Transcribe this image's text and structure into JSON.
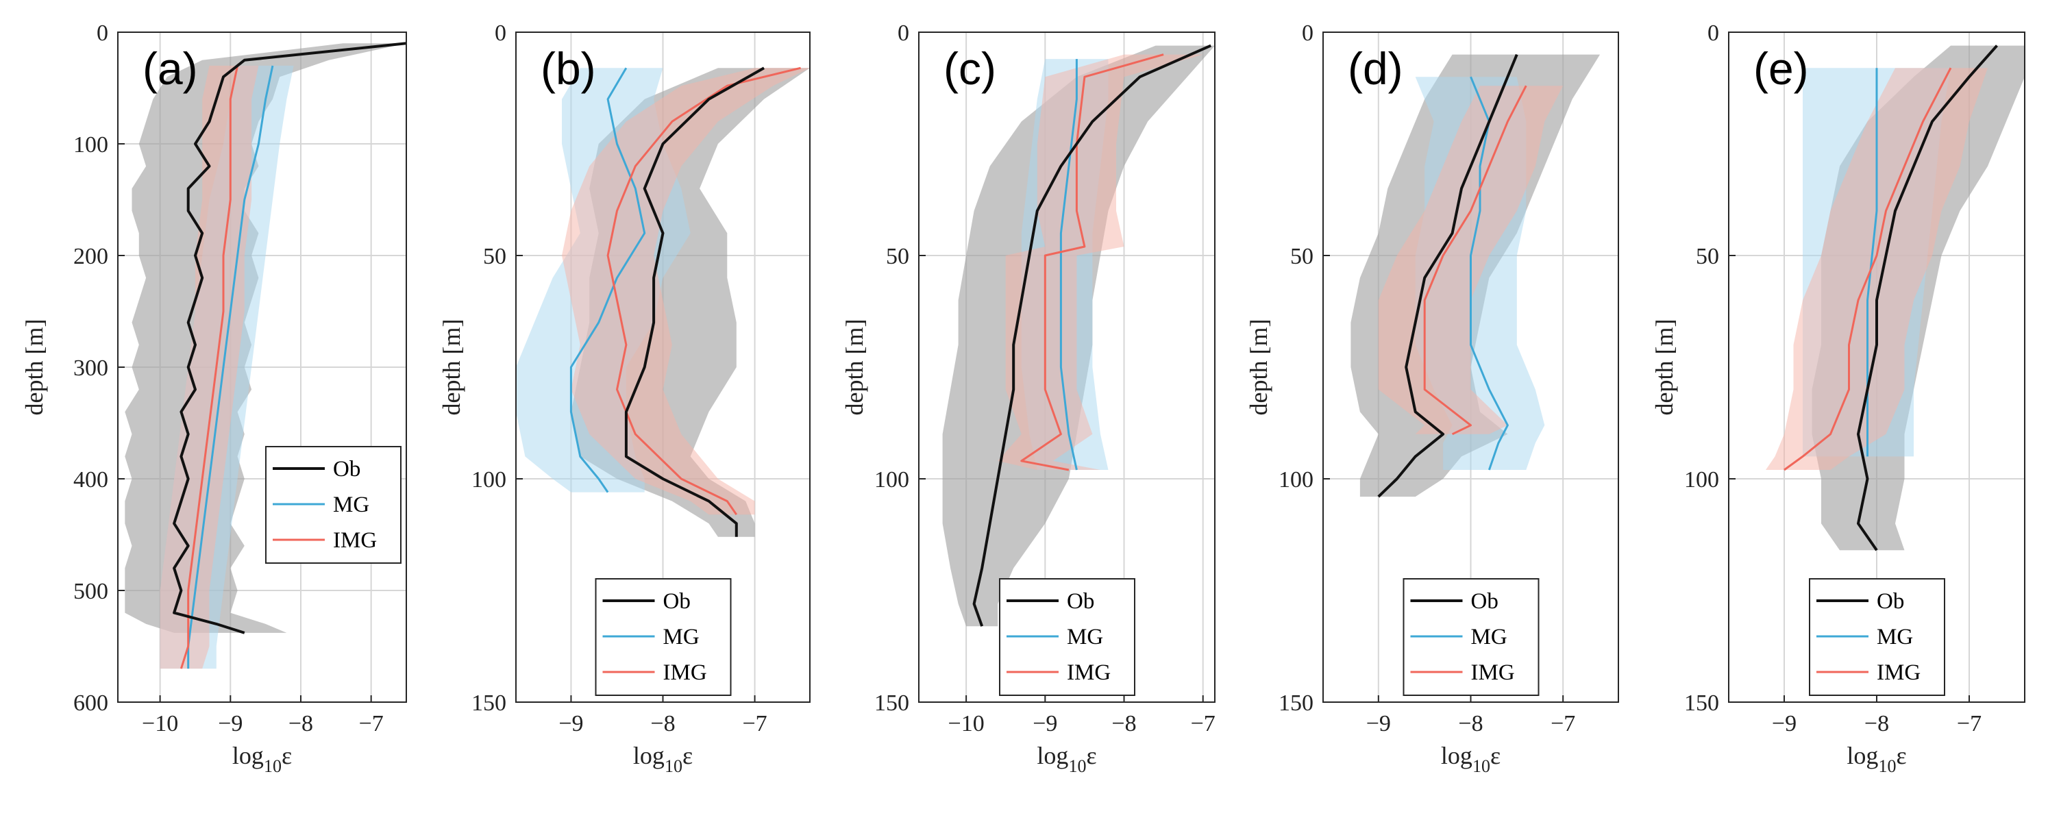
{
  "figure": {
    "ylabel": "depth [m]",
    "xlabel_base": "log",
    "xlabel_sub": "10",
    "xlabel_var": "ε",
    "legend": [
      "Ob",
      "MG",
      "IMG"
    ],
    "colors": {
      "Ob": "#111111",
      "MG": "#3ea8d6",
      "IMG": "#f0665a",
      "Ob_band": "#9e9e9e",
      "MG_band": "#a9d8ef",
      "IMG_band": "#f6b3a8",
      "grid": "#d6d6d6",
      "axis": "#262626"
    }
  },
  "chart_data": [
    {
      "type": "line",
      "label": "(a)",
      "xlim": [
        -10.6,
        -6.5
      ],
      "xticks": [
        -10,
        -9,
        -8,
        -7
      ],
      "xticklabels": [
        "−10",
        "−9",
        "−8",
        "−7"
      ],
      "ylim": [
        0,
        600
      ],
      "yticks": [
        0,
        100,
        200,
        300,
        400,
        500,
        600
      ],
      "yticklabels": [
        "0",
        "100",
        "200",
        "300",
        "400",
        "500",
        "600"
      ],
      "legend_position": "lower-right",
      "series": [
        {
          "name": "Ob",
          "depth": [
            10,
            25,
            40,
            60,
            80,
            100,
            120,
            140,
            160,
            180,
            200,
            220,
            240,
            260,
            280,
            300,
            320,
            340,
            360,
            380,
            400,
            420,
            440,
            460,
            480,
            500,
            520,
            530,
            538
          ],
          "values": [
            -6.5,
            -8.8,
            -9.1,
            -9.2,
            -9.3,
            -9.5,
            -9.3,
            -9.6,
            -9.6,
            -9.4,
            -9.5,
            -9.4,
            -9.5,
            -9.6,
            -9.5,
            -9.6,
            -9.5,
            -9.7,
            -9.6,
            -9.7,
            -9.6,
            -9.7,
            -9.8,
            -9.6,
            -9.8,
            -9.7,
            -9.8,
            -9.2,
            -8.8
          ],
          "lower": [
            -7.4,
            -9.4,
            -9.9,
            -10.1,
            -10.2,
            -10.3,
            -10.2,
            -10.4,
            -10.4,
            -10.3,
            -10.3,
            -10.2,
            -10.3,
            -10.4,
            -10.3,
            -10.4,
            -10.3,
            -10.5,
            -10.4,
            -10.5,
            -10.4,
            -10.5,
            -10.5,
            -10.4,
            -10.5,
            -10.5,
            -10.5,
            -10.2,
            -9.8
          ],
          "upper": [
            -6.5,
            -7.6,
            -8.3,
            -8.4,
            -8.6,
            -8.7,
            -8.6,
            -8.8,
            -8.8,
            -8.6,
            -8.7,
            -8.6,
            -8.7,
            -8.8,
            -8.7,
            -8.8,
            -8.7,
            -8.9,
            -8.8,
            -8.9,
            -8.8,
            -8.9,
            -9.0,
            -8.8,
            -9.0,
            -8.9,
            -9.0,
            -8.5,
            -8.2
          ]
        },
        {
          "name": "MG",
          "depth": [
            30,
            60,
            100,
            150,
            200,
            250,
            300,
            350,
            400,
            450,
            500,
            550,
            570
          ],
          "values": [
            -8.4,
            -8.5,
            -8.6,
            -8.8,
            -8.9,
            -9.0,
            -9.1,
            -9.2,
            -9.3,
            -9.4,
            -9.5,
            -9.6,
            -9.6
          ],
          "lower": [
            -8.9,
            -9.0,
            -9.1,
            -9.3,
            -9.4,
            -9.5,
            -9.6,
            -9.7,
            -9.8,
            -9.9,
            -10.0,
            -10.0,
            -10.0
          ],
          "upper": [
            -8.1,
            -8.2,
            -8.3,
            -8.4,
            -8.5,
            -8.6,
            -8.7,
            -8.8,
            -8.9,
            -9.0,
            -9.1,
            -9.2,
            -9.2
          ]
        },
        {
          "name": "IMG",
          "depth": [
            30,
            60,
            100,
            150,
            200,
            250,
            300,
            350,
            400,
            450,
            500,
            550,
            570
          ],
          "values": [
            -8.9,
            -9.0,
            -9.0,
            -9.0,
            -9.1,
            -9.1,
            -9.2,
            -9.3,
            -9.4,
            -9.5,
            -9.6,
            -9.6,
            -9.7
          ],
          "lower": [
            -9.3,
            -9.4,
            -9.4,
            -9.4,
            -9.5,
            -9.5,
            -9.6,
            -9.7,
            -9.8,
            -9.9,
            -10.0,
            -10.0,
            -10.0
          ],
          "upper": [
            -8.6,
            -8.7,
            -8.7,
            -8.7,
            -8.8,
            -8.8,
            -8.9,
            -9.0,
            -9.1,
            -9.2,
            -9.3,
            -9.3,
            -9.4
          ]
        }
      ]
    },
    {
      "type": "line",
      "label": "(b)",
      "xlim": [
        -9.6,
        -6.4
      ],
      "xticks": [
        -9,
        -8,
        -7
      ],
      "xticklabels": [
        "−9",
        "−8",
        "−7"
      ],
      "ylim": [
        0,
        150
      ],
      "yticks": [
        0,
        50,
        100,
        150
      ],
      "yticklabels": [
        "0",
        "50",
        "100",
        "150"
      ],
      "legend_position": "bottom",
      "series": [
        {
          "name": "Ob",
          "depth": [
            8,
            15,
            25,
            35,
            45,
            55,
            65,
            75,
            85,
            95,
            100,
            105,
            110,
            113
          ],
          "values": [
            -6.9,
            -7.5,
            -8.0,
            -8.2,
            -8.0,
            -8.1,
            -8.1,
            -8.2,
            -8.4,
            -8.4,
            -8.0,
            -7.5,
            -7.2,
            -7.2
          ],
          "lower": [
            -7.4,
            -8.2,
            -8.7,
            -8.8,
            -8.7,
            -8.8,
            -8.8,
            -8.9,
            -9.0,
            -8.9,
            -8.5,
            -7.9,
            -7.5,
            -7.4
          ],
          "upper": [
            -6.4,
            -6.9,
            -7.4,
            -7.6,
            -7.3,
            -7.3,
            -7.2,
            -7.2,
            -7.5,
            -7.7,
            -7.5,
            -7.1,
            -7.0,
            -7.0
          ]
        },
        {
          "name": "MG",
          "depth": [
            8,
            15,
            25,
            35,
            45,
            55,
            65,
            75,
            85,
            95,
            100,
            103
          ],
          "values": [
            -8.4,
            -8.6,
            -8.5,
            -8.3,
            -8.2,
            -8.5,
            -8.7,
            -9.0,
            -9.0,
            -8.9,
            -8.7,
            -8.6
          ],
          "lower": [
            -8.9,
            -9.1,
            -9.1,
            -9.0,
            -8.9,
            -9.2,
            -9.4,
            -9.6,
            -9.6,
            -9.5,
            -9.2,
            -9.0
          ],
          "upper": [
            -8.0,
            -8.1,
            -8.0,
            -7.8,
            -7.7,
            -8.0,
            -8.1,
            -8.4,
            -8.4,
            -8.3,
            -8.2,
            -8.2
          ]
        },
        {
          "name": "IMG",
          "depth": [
            8,
            12,
            20,
            30,
            40,
            50,
            60,
            70,
            80,
            90,
            100,
            105,
            108
          ],
          "values": [
            -6.5,
            -7.3,
            -7.9,
            -8.3,
            -8.5,
            -8.6,
            -8.5,
            -8.4,
            -8.5,
            -8.3,
            -7.8,
            -7.3,
            -7.2
          ],
          "lower": [
            -7.0,
            -7.8,
            -8.4,
            -8.8,
            -9.0,
            -9.1,
            -9.0,
            -8.9,
            -9.0,
            -8.8,
            -8.3,
            -7.7,
            -7.5
          ],
          "upper": [
            -6.4,
            -6.8,
            -7.4,
            -7.8,
            -8.0,
            -8.1,
            -8.0,
            -7.9,
            -8.0,
            -7.8,
            -7.4,
            -7.0,
            -7.0
          ]
        }
      ]
    },
    {
      "type": "line",
      "label": "(c)",
      "xlim": [
        -10.6,
        -6.85
      ],
      "xticks": [
        -10,
        -9,
        -8,
        -7
      ],
      "xticklabels": [
        "−10",
        "−9",
        "−8",
        "−7"
      ],
      "ylim": [
        0,
        150
      ],
      "yticks": [
        0,
        50,
        100,
        150
      ],
      "yticklabels": [
        "0",
        "50",
        "100",
        "150"
      ],
      "legend_position": "bottom",
      "series": [
        {
          "name": "Ob",
          "depth": [
            3,
            10,
            20,
            30,
            40,
            50,
            60,
            70,
            80,
            90,
            100,
            110,
            120,
            128,
            133
          ],
          "values": [
            -6.9,
            -7.8,
            -8.4,
            -8.8,
            -9.1,
            -9.2,
            -9.3,
            -9.4,
            -9.4,
            -9.5,
            -9.6,
            -9.7,
            -9.8,
            -9.9,
            -9.8
          ],
          "lower": [
            -7.6,
            -8.6,
            -9.3,
            -9.7,
            -9.9,
            -10.0,
            -10.1,
            -10.1,
            -10.2,
            -10.3,
            -10.3,
            -10.3,
            -10.2,
            -10.1,
            -10.0
          ],
          "upper": [
            -6.85,
            -7.2,
            -7.7,
            -8.0,
            -8.2,
            -8.3,
            -8.4,
            -8.4,
            -8.5,
            -8.6,
            -8.7,
            -9.0,
            -9.4,
            -9.6,
            -9.6
          ]
        },
        {
          "name": "MG",
          "depth": [
            6,
            15,
            30,
            45,
            60,
            75,
            90,
            98
          ],
          "values": [
            -8.6,
            -8.6,
            -8.7,
            -8.8,
            -8.8,
            -8.8,
            -8.7,
            -8.6
          ],
          "lower": [
            -9.0,
            -9.1,
            -9.2,
            -9.3,
            -9.3,
            -9.3,
            -9.2,
            -9.1
          ],
          "upper": [
            -8.2,
            -8.2,
            -8.3,
            -8.4,
            -8.4,
            -8.4,
            -8.3,
            -8.2
          ]
        },
        {
          "name": "IMG",
          "depth": [
            5,
            10,
            25,
            40,
            48,
            50,
            60,
            70,
            80,
            90,
            96,
            98
          ],
          "values": [
            -7.5,
            -8.5,
            -8.6,
            -8.6,
            -8.5,
            -9.0,
            -9.0,
            -9.0,
            -9.0,
            -8.8,
            -9.3,
            -8.7
          ],
          "lower": [
            -8.0,
            -9.0,
            -9.1,
            -9.1,
            -9.0,
            -9.5,
            -9.5,
            -9.5,
            -9.5,
            -9.3,
            -9.6,
            -9.1
          ],
          "upper": [
            -7.0,
            -8.0,
            -8.1,
            -8.1,
            -8.0,
            -8.6,
            -8.6,
            -8.6,
            -8.6,
            -8.4,
            -8.9,
            -8.3
          ]
        }
      ]
    },
    {
      "type": "line",
      "label": "(d)",
      "xlim": [
        -9.6,
        -6.4
      ],
      "xticks": [
        -9,
        -8,
        -7
      ],
      "xticklabels": [
        "−9",
        "−8",
        "−7"
      ],
      "ylim": [
        0,
        150
      ],
      "yticks": [
        0,
        50,
        100,
        150
      ],
      "yticklabels": [
        "0",
        "50",
        "100",
        "150"
      ],
      "legend_position": "bottom",
      "series": [
        {
          "name": "Ob",
          "depth": [
            5,
            15,
            25,
            35,
            45,
            55,
            65,
            75,
            85,
            90,
            95,
            100,
            104
          ],
          "values": [
            -7.5,
            -7.7,
            -7.9,
            -8.1,
            -8.2,
            -8.5,
            -8.6,
            -8.7,
            -8.6,
            -8.3,
            -8.6,
            -8.8,
            -9.0
          ],
          "lower": [
            -8.2,
            -8.5,
            -8.7,
            -8.9,
            -9.0,
            -9.2,
            -9.3,
            -9.3,
            -9.2,
            -9.0,
            -9.1,
            -9.2,
            -9.2
          ],
          "upper": [
            -6.6,
            -6.9,
            -7.1,
            -7.3,
            -7.5,
            -7.8,
            -7.9,
            -8.0,
            -7.9,
            -7.6,
            -8.1,
            -8.3,
            -8.6
          ]
        },
        {
          "name": "MG",
          "depth": [
            10,
            20,
            30,
            40,
            50,
            60,
            70,
            80,
            88,
            92,
            98
          ],
          "values": [
            -8.0,
            -7.8,
            -7.9,
            -7.9,
            -8.0,
            -8.0,
            -8.0,
            -7.8,
            -7.6,
            -7.7,
            -7.8
          ],
          "lower": [
            -8.6,
            -8.4,
            -8.5,
            -8.5,
            -8.6,
            -8.6,
            -8.6,
            -8.4,
            -8.2,
            -8.3,
            -8.3
          ],
          "upper": [
            -7.5,
            -7.4,
            -7.4,
            -7.4,
            -7.5,
            -7.5,
            -7.5,
            -7.3,
            -7.2,
            -7.3,
            -7.4
          ]
        },
        {
          "name": "IMG",
          "depth": [
            12,
            20,
            30,
            40,
            50,
            60,
            70,
            80,
            88,
            90
          ],
          "values": [
            -7.4,
            -7.6,
            -7.8,
            -8.0,
            -8.3,
            -8.5,
            -8.5,
            -8.5,
            -8.0,
            -8.2
          ],
          "lower": [
            -7.9,
            -8.1,
            -8.3,
            -8.5,
            -8.8,
            -9.0,
            -9.0,
            -9.0,
            -8.5,
            -8.6
          ],
          "upper": [
            -7.0,
            -7.2,
            -7.3,
            -7.5,
            -7.8,
            -8.0,
            -8.0,
            -8.0,
            -7.6,
            -7.8
          ]
        }
      ]
    },
    {
      "type": "line",
      "label": "(e)",
      "xlim": [
        -9.6,
        -6.4
      ],
      "xticks": [
        -9,
        -8,
        -7
      ],
      "xticklabels": [
        "−9",
        "−8",
        "−7"
      ],
      "ylim": [
        0,
        150
      ],
      "yticks": [
        0,
        50,
        100,
        150
      ],
      "yticklabels": [
        "0",
        "50",
        "100",
        "150"
      ],
      "legend_position": "bottom",
      "series": [
        {
          "name": "Ob",
          "depth": [
            3,
            10,
            20,
            30,
            40,
            50,
            60,
            70,
            80,
            90,
            100,
            110,
            116
          ],
          "values": [
            -6.7,
            -7.0,
            -7.4,
            -7.6,
            -7.8,
            -7.9,
            -8.0,
            -8.0,
            -8.1,
            -8.2,
            -8.1,
            -8.2,
            -8.0
          ],
          "lower": [
            -7.2,
            -7.6,
            -8.1,
            -8.4,
            -8.5,
            -8.6,
            -8.6,
            -8.6,
            -8.7,
            -8.7,
            -8.6,
            -8.6,
            -8.4
          ],
          "upper": [
            -6.4,
            -6.4,
            -6.6,
            -6.8,
            -7.1,
            -7.3,
            -7.4,
            -7.5,
            -7.6,
            -7.7,
            -7.7,
            -7.8,
            -7.7
          ]
        },
        {
          "name": "MG",
          "depth": [
            8,
            20,
            40,
            60,
            80,
            95
          ],
          "values": [
            -8.0,
            -8.0,
            -8.0,
            -8.1,
            -8.1,
            -8.1
          ],
          "lower": [
            -8.8,
            -8.8,
            -8.8,
            -8.8,
            -8.8,
            -8.8
          ],
          "upper": [
            -7.2,
            -7.3,
            -7.4,
            -7.5,
            -7.6,
            -7.6
          ]
        },
        {
          "name": "IMG",
          "depth": [
            8,
            20,
            30,
            40,
            50,
            60,
            70,
            80,
            90,
            95,
            98
          ],
          "values": [
            -7.2,
            -7.5,
            -7.7,
            -7.9,
            -8.0,
            -8.2,
            -8.3,
            -8.3,
            -8.5,
            -8.8,
            -9.0
          ],
          "lower": [
            -7.8,
            -8.1,
            -8.3,
            -8.5,
            -8.6,
            -8.8,
            -8.9,
            -8.9,
            -9.0,
            -9.1,
            -9.2
          ],
          "upper": [
            -6.8,
            -7.0,
            -7.1,
            -7.3,
            -7.4,
            -7.6,
            -7.7,
            -7.7,
            -7.9,
            -8.3,
            -8.5
          ]
        }
      ]
    }
  ]
}
